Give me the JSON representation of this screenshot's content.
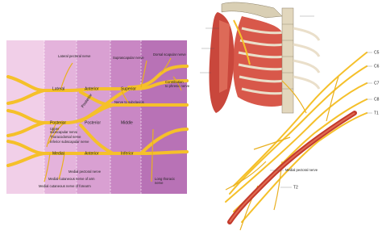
{
  "labels": {
    "lateral_pectoral": "Lateral pectoral nerve",
    "suprascapular": "Suprascapular nerve",
    "dorsal_scapular": "Dorsal scapular nerve",
    "phrenic_0": "Contribution",
    "phrenic_1": "to phrenic nerve",
    "lateral": "Lateral",
    "anterior_1": "Anterior",
    "superior": "Superior",
    "subclavius": "Nerve to subclavius",
    "posterior_rot": "Posterior",
    "posterior_cord": "Posterior",
    "posterior_div": "Posterior",
    "middle": "Middle",
    "upper_subscapular_0": "Upper",
    "upper_subscapular_1": "subscapular nerve",
    "thoracodorsal": "Thoracodorsal nerve",
    "inferior_subscapular": "Inferior subscapular nerve",
    "medial": "Medial",
    "anterior_2": "Anterior",
    "inferior": "Inferior",
    "medial_pectoral": "Medial pectoral nerve",
    "cutaneous_arm": "Medial cutaneous nerve of arm",
    "cutaneous_forearm": "Medial cutaneous nerve of forearm",
    "long_thoracic_0": "Long thoracic",
    "long_thoracic_1": "nerve",
    "c5": "C5",
    "c6": "C6",
    "c7": "C7",
    "c8": "C8",
    "t1": "T1",
    "medial_pectoral_illus": "Medial pectoral nerve",
    "t2": "T2"
  }
}
